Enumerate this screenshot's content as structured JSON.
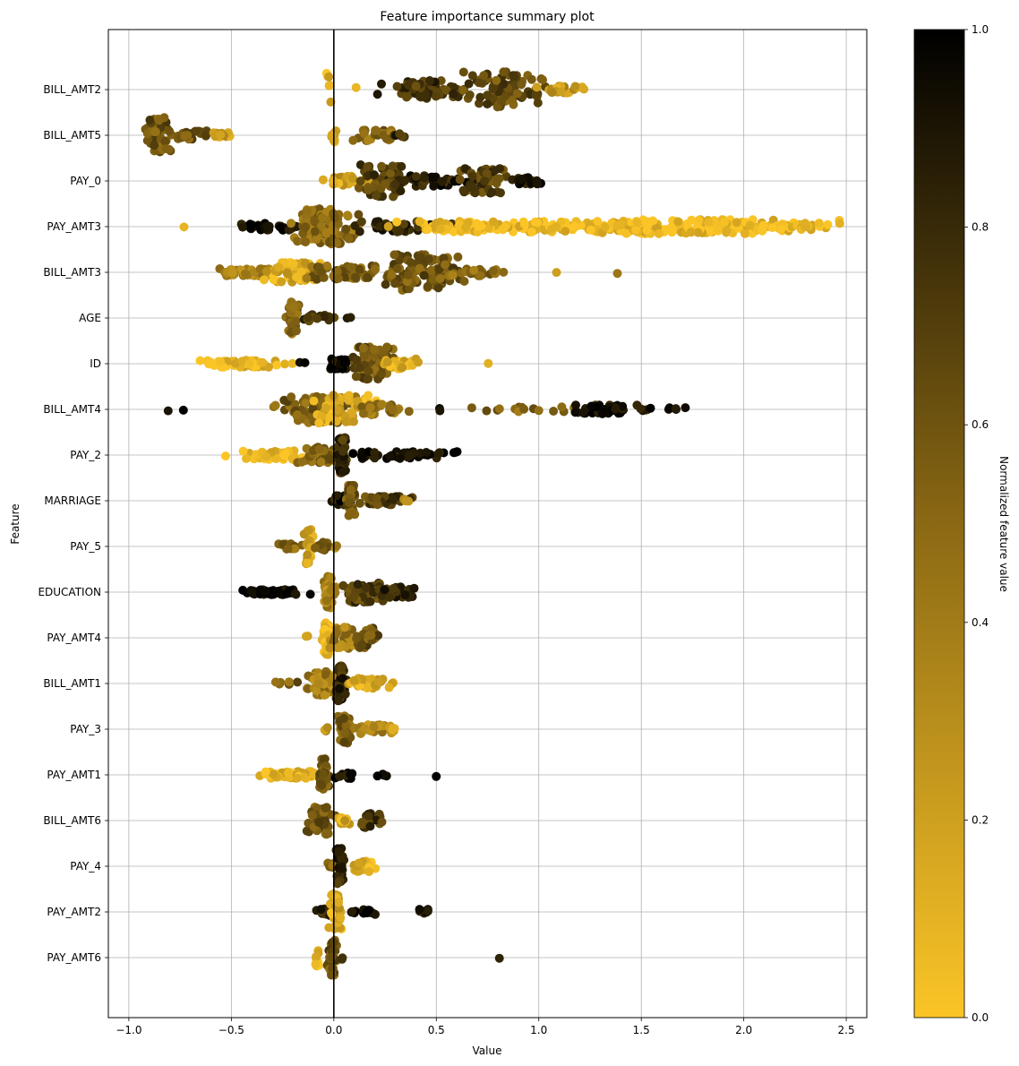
{
  "chart_data": {
    "type": "scatter",
    "title": "Feature importance summary plot",
    "xlabel": "Value",
    "ylabel": "Feature",
    "xlim": [
      -1.1,
      2.6
    ],
    "xticks": [
      -1.0,
      -0.5,
      0.0,
      0.5,
      1.0,
      1.5,
      2.0,
      2.5
    ],
    "xtick_labels": [
      "−1.0",
      "−0.5",
      "0.0",
      "0.5",
      "1.0",
      "1.5",
      "2.0",
      "2.5"
    ],
    "grid": true,
    "zero_line": 0.0,
    "colorbar": {
      "label": "Normalized feature value",
      "range": [
        0,
        1
      ],
      "ticks": [
        0.0,
        0.2,
        0.4,
        0.6,
        0.8,
        1.0
      ],
      "tick_labels": [
        "0.0",
        "0.2",
        "0.4",
        "0.6",
        "0.8",
        "1.0"
      ],
      "color_low": "#fbc527",
      "color_mid": "#8b6914",
      "color_high": "#000000"
    },
    "features": [
      {
        "name": "BILL_AMT2",
        "clusters": [
          {
            "c": -0.03,
            "s": 0.01,
            "n": 6,
            "v": 0.1,
            "h": 1.0
          },
          {
            "c": 0.1,
            "s": 0.01,
            "n": 1,
            "v": 0.2,
            "h": 0.2
          },
          {
            "c": 0.45,
            "s": 0.09,
            "n": 70,
            "v": 0.75,
            "h": 0.5
          },
          {
            "c": 0.82,
            "s": 0.08,
            "n": 90,
            "v": 0.65,
            "h": 1.0
          },
          {
            "c": 1.12,
            "s": 0.05,
            "n": 30,
            "v": 0.25,
            "h": 0.2
          }
        ]
      },
      {
        "name": "BILL_AMT5",
        "clusters": [
          {
            "c": -0.86,
            "s": 0.025,
            "n": 60,
            "v": 0.6,
            "h": 1.0
          },
          {
            "c": -0.7,
            "s": 0.04,
            "n": 25,
            "v": 0.6,
            "h": 0.25
          },
          {
            "c": -0.55,
            "s": 0.03,
            "n": 12,
            "v": 0.25,
            "h": 0.15
          },
          {
            "c": 0.0,
            "s": 0.01,
            "n": 8,
            "v": 0.2,
            "h": 0.4
          },
          {
            "c": 0.22,
            "s": 0.05,
            "n": 25,
            "v": 0.5,
            "h": 0.3
          },
          {
            "c": 0.32,
            "s": 0.02,
            "n": 6,
            "v": 0.8,
            "h": 0.1
          }
        ]
      },
      {
        "name": "PAY_0",
        "clusters": [
          {
            "c": 0.06,
            "s": 0.05,
            "n": 25,
            "v": 0.2,
            "h": 0.3
          },
          {
            "c": 0.25,
            "s": 0.06,
            "n": 60,
            "v": 0.7,
            "h": 0.9
          },
          {
            "c": 0.5,
            "s": 0.08,
            "n": 40,
            "v": 0.85,
            "h": 0.3
          },
          {
            "c": 0.73,
            "s": 0.05,
            "n": 55,
            "v": 0.7,
            "h": 0.7
          },
          {
            "c": 0.93,
            "s": 0.04,
            "n": 20,
            "v": 0.85,
            "h": 0.2
          }
        ]
      },
      {
        "name": "PAY_AMT3",
        "clusters": [
          {
            "c": -0.73,
            "s": 0.005,
            "n": 1,
            "v": 0.1,
            "h": 0.1
          },
          {
            "c": -0.3,
            "s": 0.08,
            "n": 30,
            "v": 0.95,
            "h": 0.2
          },
          {
            "c": -0.03,
            "s": 0.07,
            "n": 110,
            "v": 0.5,
            "h": 1.0
          },
          {
            "c": 0.3,
            "s": 0.12,
            "n": 40,
            "v": 0.8,
            "h": 0.3
          },
          {
            "c": 0.65,
            "s": 0.14,
            "n": 80,
            "v": 0.05,
            "h": 0.3
          },
          {
            "c": 1.25,
            "s": 0.22,
            "n": 100,
            "v": 0.05,
            "h": 0.3
          },
          {
            "c": 1.85,
            "s": 0.25,
            "n": 130,
            "v": 0.05,
            "h": 0.4
          },
          {
            "c": 2.3,
            "s": 0.08,
            "n": 25,
            "v": 0.05,
            "h": 0.2
          }
        ]
      },
      {
        "name": "BILL_AMT3",
        "clusters": [
          {
            "c": -0.45,
            "s": 0.08,
            "n": 40,
            "v": 0.35,
            "h": 0.2
          },
          {
            "c": -0.2,
            "s": 0.06,
            "n": 60,
            "v": 0.15,
            "h": 0.55
          },
          {
            "c": 0.05,
            "s": 0.1,
            "n": 60,
            "v": 0.55,
            "h": 0.4
          },
          {
            "c": 0.45,
            "s": 0.1,
            "n": 100,
            "v": 0.6,
            "h": 1.0
          },
          {
            "c": 0.72,
            "s": 0.07,
            "n": 25,
            "v": 0.5,
            "h": 0.2
          },
          {
            "c": 1.09,
            "s": 0.005,
            "n": 1,
            "v": 0.3,
            "h": 0.1
          },
          {
            "c": 1.39,
            "s": 0.005,
            "n": 1,
            "v": 0.3,
            "h": 0.1
          }
        ]
      },
      {
        "name": "AGE",
        "clusters": [
          {
            "c": -0.2,
            "s": 0.012,
            "n": 40,
            "v": 0.5,
            "h": 0.9
          },
          {
            "c": -0.08,
            "s": 0.04,
            "n": 20,
            "v": 0.7,
            "h": 0.2
          },
          {
            "c": 0.07,
            "s": 0.005,
            "n": 2,
            "v": 0.8,
            "h": 0.1
          }
        ]
      },
      {
        "name": "ID",
        "clusters": [
          {
            "c": -0.45,
            "s": 0.09,
            "n": 70,
            "v": 0.08,
            "h": 0.2
          },
          {
            "c": -0.15,
            "s": 0.01,
            "n": 2,
            "v": 0.95,
            "h": 0.1
          },
          {
            "c": 0.03,
            "s": 0.03,
            "n": 30,
            "v": 0.95,
            "h": 0.3
          },
          {
            "c": 0.18,
            "s": 0.05,
            "n": 80,
            "v": 0.6,
            "h": 0.95
          },
          {
            "c": 0.32,
            "s": 0.04,
            "n": 30,
            "v": 0.15,
            "h": 0.3
          },
          {
            "c": 0.41,
            "s": 0.005,
            "n": 1,
            "v": 0.1,
            "h": 0.1
          },
          {
            "c": 0.76,
            "s": 0.005,
            "n": 1,
            "v": 0.1,
            "h": 0.1
          }
        ]
      },
      {
        "name": "BILL_AMT4",
        "clusters": [
          {
            "c": -0.75,
            "s": 0.05,
            "n": 2,
            "v": 0.95,
            "h": 0.1
          },
          {
            "c": -0.1,
            "s": 0.08,
            "n": 90,
            "v": 0.55,
            "h": 0.75
          },
          {
            "c": 0.05,
            "s": 0.06,
            "n": 60,
            "v": 0.15,
            "h": 0.8
          },
          {
            "c": 0.25,
            "s": 0.06,
            "n": 30,
            "v": 0.45,
            "h": 0.3
          },
          {
            "c": 0.52,
            "s": 0.005,
            "n": 2,
            "v": 0.9,
            "h": 0.1
          },
          {
            "c": 0.9,
            "s": 0.12,
            "n": 15,
            "v": 0.5,
            "h": 0.15
          },
          {
            "c": 1.3,
            "s": 0.08,
            "n": 45,
            "v": 0.95,
            "h": 0.25
          },
          {
            "c": 1.6,
            "s": 0.06,
            "n": 10,
            "v": 0.95,
            "h": 0.1
          }
        ]
      },
      {
        "name": "PAY_2",
        "clusters": [
          {
            "c": -0.3,
            "s": 0.08,
            "n": 45,
            "v": 0.08,
            "h": 0.25
          },
          {
            "c": -0.05,
            "s": 0.06,
            "n": 40,
            "v": 0.55,
            "h": 0.45
          },
          {
            "c": 0.04,
            "s": 0.01,
            "n": 60,
            "v": 0.8,
            "h": 1.0
          },
          {
            "c": 0.35,
            "s": 0.12,
            "n": 45,
            "v": 0.97,
            "h": 0.2
          }
        ]
      },
      {
        "name": "MARRIAGE",
        "clusters": [
          {
            "c": 0.03,
            "s": 0.02,
            "n": 25,
            "v": 0.9,
            "h": 0.3
          },
          {
            "c": 0.08,
            "s": 0.01,
            "n": 40,
            "v": 0.6,
            "h": 0.9
          },
          {
            "c": 0.25,
            "s": 0.06,
            "n": 35,
            "v": 0.7,
            "h": 0.25
          },
          {
            "c": 0.36,
            "s": 0.01,
            "n": 5,
            "v": 0.3,
            "h": 0.1
          }
        ]
      },
      {
        "name": "PAY_5",
        "clusters": [
          {
            "c": -0.22,
            "s": 0.03,
            "n": 15,
            "v": 0.5,
            "h": 0.15
          },
          {
            "c": -0.12,
            "s": 0.01,
            "n": 40,
            "v": 0.2,
            "h": 1.0
          },
          {
            "c": -0.04,
            "s": 0.02,
            "n": 15,
            "v": 0.6,
            "h": 0.3
          },
          {
            "c": 0.01,
            "s": 0.005,
            "n": 3,
            "v": 0.4,
            "h": 0.1
          }
        ]
      },
      {
        "name": "EDUCATION",
        "clusters": [
          {
            "c": -0.3,
            "s": 0.08,
            "n": 60,
            "v": 0.98,
            "h": 0.15
          },
          {
            "c": -0.02,
            "s": 0.015,
            "n": 45,
            "v": 0.35,
            "h": 0.9
          },
          {
            "c": 0.15,
            "s": 0.05,
            "n": 50,
            "v": 0.7,
            "h": 0.6
          },
          {
            "c": 0.32,
            "s": 0.05,
            "n": 40,
            "v": 0.8,
            "h": 0.3
          }
        ]
      },
      {
        "name": "PAY_AMT4",
        "clusters": [
          {
            "c": -0.13,
            "s": 0.01,
            "n": 2,
            "v": 0.3,
            "h": 0.1
          },
          {
            "c": -0.03,
            "s": 0.01,
            "n": 40,
            "v": 0.05,
            "h": 1.0
          },
          {
            "c": 0.04,
            "s": 0.03,
            "n": 40,
            "v": 0.4,
            "h": 0.6
          },
          {
            "c": 0.16,
            "s": 0.03,
            "n": 35,
            "v": 0.6,
            "h": 0.6
          }
        ]
      },
      {
        "name": "BILL_AMT1",
        "clusters": [
          {
            "c": -0.25,
            "s": 0.04,
            "n": 6,
            "v": 0.55,
            "h": 0.1
          },
          {
            "c": -0.06,
            "s": 0.03,
            "n": 50,
            "v": 0.4,
            "h": 0.7
          },
          {
            "c": 0.03,
            "s": 0.015,
            "n": 40,
            "v": 0.8,
            "h": 1.0
          },
          {
            "c": 0.18,
            "s": 0.05,
            "n": 35,
            "v": 0.15,
            "h": 0.3
          }
        ]
      },
      {
        "name": "PAY_3",
        "clusters": [
          {
            "c": -0.04,
            "s": 0.01,
            "n": 3,
            "v": 0.3,
            "h": 0.1
          },
          {
            "c": 0.06,
            "s": 0.015,
            "n": 50,
            "v": 0.55,
            "h": 0.8
          },
          {
            "c": 0.2,
            "s": 0.05,
            "n": 40,
            "v": 0.35,
            "h": 0.25
          },
          {
            "c": 0.3,
            "s": 0.01,
            "n": 3,
            "v": 0.15,
            "h": 0.1
          }
        ]
      },
      {
        "name": "PAY_AMT1",
        "clusters": [
          {
            "c": -0.2,
            "s": 0.07,
            "n": 60,
            "v": 0.08,
            "h": 0.2
          },
          {
            "c": -0.05,
            "s": 0.015,
            "n": 40,
            "v": 0.6,
            "h": 0.9
          },
          {
            "c": 0.05,
            "s": 0.03,
            "n": 10,
            "v": 0.95,
            "h": 0.2
          },
          {
            "c": 0.23,
            "s": 0.02,
            "n": 4,
            "v": 0.95,
            "h": 0.1
          },
          {
            "c": 0.5,
            "s": 0.005,
            "n": 1,
            "v": 0.95,
            "h": 0.1
          }
        ]
      },
      {
        "name": "BILL_AMT6",
        "clusters": [
          {
            "c": -0.07,
            "s": 0.03,
            "n": 45,
            "v": 0.6,
            "h": 0.8
          },
          {
            "c": 0.05,
            "s": 0.02,
            "n": 15,
            "v": 0.15,
            "h": 0.2
          },
          {
            "c": 0.18,
            "s": 0.02,
            "n": 25,
            "v": 0.75,
            "h": 0.4
          }
        ]
      },
      {
        "name": "PAY_4",
        "clusters": [
          {
            "c": -0.02,
            "s": 0.01,
            "n": 5,
            "v": 0.5,
            "h": 0.2
          },
          {
            "c": 0.03,
            "s": 0.01,
            "n": 40,
            "v": 0.8,
            "h": 1.0
          },
          {
            "c": 0.14,
            "s": 0.03,
            "n": 25,
            "v": 0.12,
            "h": 0.3
          }
        ]
      },
      {
        "name": "PAY_AMT2",
        "clusters": [
          {
            "c": -0.03,
            "s": 0.02,
            "n": 20,
            "v": 0.8,
            "h": 0.2
          },
          {
            "c": 0.01,
            "s": 0.015,
            "n": 45,
            "v": 0.15,
            "h": 1.0
          },
          {
            "c": 0.15,
            "s": 0.03,
            "n": 15,
            "v": 0.95,
            "h": 0.15
          },
          {
            "c": 0.44,
            "s": 0.02,
            "n": 8,
            "v": 0.9,
            "h": 0.15
          }
        ]
      },
      {
        "name": "PAY_AMT6",
        "clusters": [
          {
            "c": -0.08,
            "s": 0.005,
            "n": 10,
            "v": 0.08,
            "h": 0.5
          },
          {
            "c": -0.01,
            "s": 0.01,
            "n": 40,
            "v": 0.6,
            "h": 1.0
          },
          {
            "c": 0.04,
            "s": 0.005,
            "n": 2,
            "v": 0.9,
            "h": 0.1
          },
          {
            "c": 0.81,
            "s": 0.003,
            "n": 1,
            "v": 0.95,
            "h": 0.1
          }
        ]
      }
    ]
  }
}
